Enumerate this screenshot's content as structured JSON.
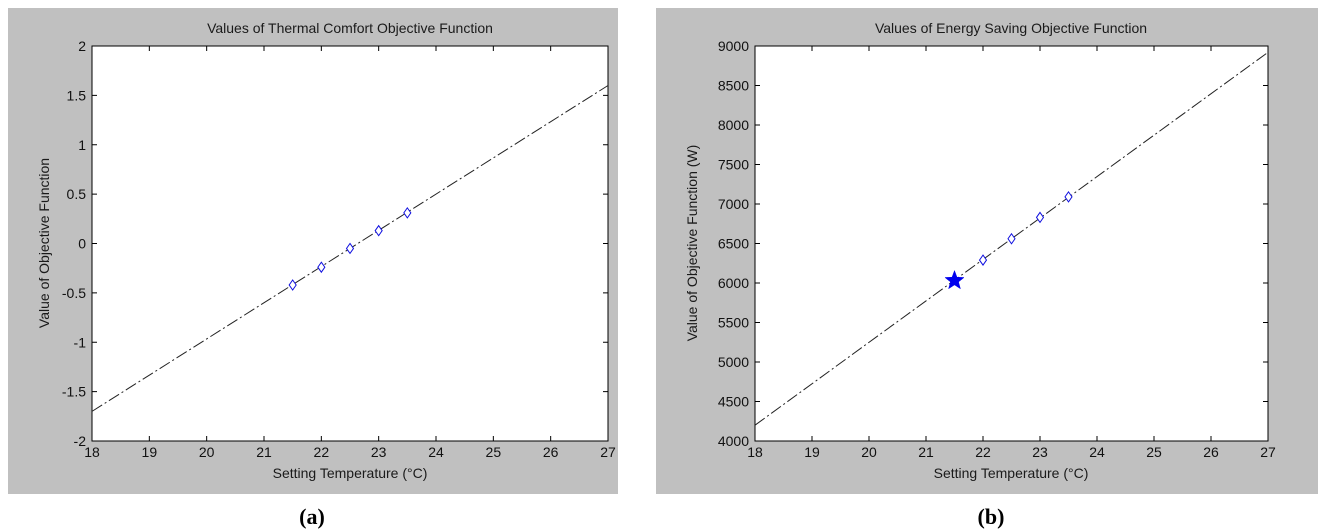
{
  "chart_data": [
    {
      "type": "line",
      "title": "Values of Thermal Comfort Objective Function",
      "xlabel": "Setting Temperature (°C)",
      "ylabel": "Value of Objective Function",
      "caption": "(a)",
      "xlim": [
        18,
        27
      ],
      "ylim": [
        -2,
        2
      ],
      "xticks": [
        18,
        19,
        20,
        21,
        22,
        23,
        24,
        25,
        26,
        27
      ],
      "yticks": [
        -2,
        -1.5,
        -1,
        -0.5,
        0,
        0.5,
        1,
        1.5,
        2
      ],
      "grid": false,
      "series": [
        {
          "style": "dash-dot",
          "color": "#222222",
          "x": [
            18,
            27
          ],
          "y": [
            -1.7,
            1.6
          ]
        },
        {
          "style": "diamond-markers",
          "color": "#1010e0",
          "x": [
            21.5,
            22,
            22.5,
            23,
            23.5
          ],
          "y": [
            -0.42,
            -0.24,
            -0.05,
            0.13,
            0.31
          ]
        }
      ]
    },
    {
      "type": "line",
      "title": "Values of Energy Saving Objective Function",
      "xlabel": "Setting Temperature (°C)",
      "ylabel": "Value of Objective Function (W)",
      "caption": "(b)",
      "xlim": [
        18,
        27
      ],
      "ylim": [
        4000,
        9000
      ],
      "xticks": [
        18,
        19,
        20,
        21,
        22,
        23,
        24,
        25,
        26,
        27
      ],
      "yticks": [
        4000,
        4500,
        5000,
        5500,
        6000,
        6500,
        7000,
        7500,
        8000,
        8500,
        9000
      ],
      "grid": false,
      "series": [
        {
          "style": "dash-dot",
          "color": "#222222",
          "x": [
            18,
            27
          ],
          "y": [
            4200,
            8920
          ]
        },
        {
          "style": "diamond-markers",
          "color": "#1010e0",
          "x": [
            22,
            22.5,
            23,
            23.5
          ],
          "y": [
            6290,
            6560,
            6830,
            7090
          ]
        },
        {
          "style": "star-marker",
          "color": "#0000ee",
          "x": [
            21.5
          ],
          "y": [
            6030
          ]
        }
      ]
    }
  ]
}
